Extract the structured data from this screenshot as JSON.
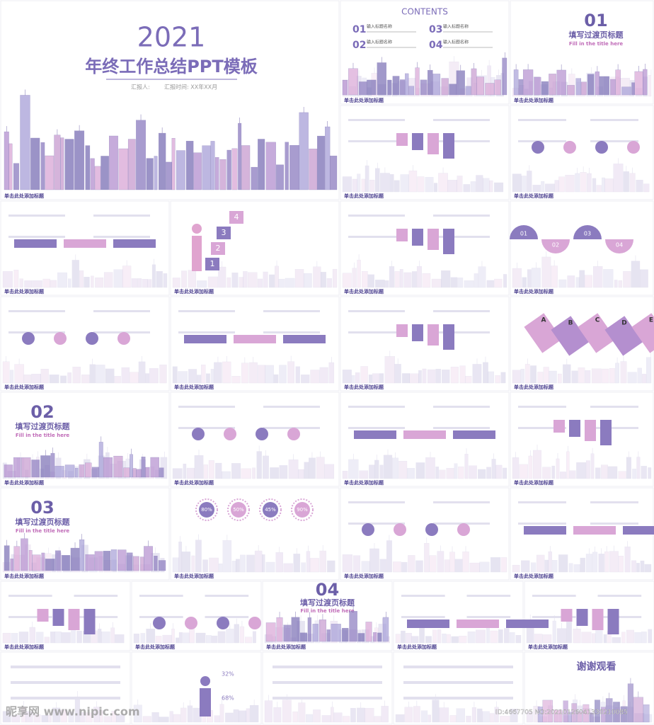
{
  "cover": {
    "year": "2021",
    "title": "年终工作总结PPT模板",
    "reporter": "汇报人:",
    "time": "汇报时间: XX年XX月"
  },
  "contents": {
    "title": "CONTENTS",
    "items": [
      {
        "num": "01",
        "label": "输入标题名称"
      },
      {
        "num": "03",
        "label": "输入标题名称"
      },
      {
        "num": "02",
        "label": "输入标题名称"
      },
      {
        "num": "04",
        "label": "输入标题名称"
      }
    ]
  },
  "transitions": [
    {
      "num": "01",
      "title": "填写过渡页标题",
      "subtitle": "Fill in the title here"
    },
    {
      "num": "02",
      "title": "填写过渡页标题",
      "subtitle": "Fill in the title here"
    },
    {
      "num": "03",
      "title": "填写过渡页标题",
      "subtitle": "Fill in the title here"
    },
    {
      "num": "04",
      "title": "填写过渡页标题",
      "subtitle": "Fill in the title here"
    }
  ],
  "captions": [
    "单击此处添加标题",
    "单击此处添加标题",
    "单击此处添加标题",
    "单击此处添加标题",
    "单击此处添加标题",
    "单击此处添加标题",
    "单击此处添加标题",
    "单击此处添加标题",
    "单击此处添加标题",
    "单击此处添加标题",
    "单击此处添加标题",
    "单击此处添加标题",
    "单击此处添加标题",
    "单击此处添加标题",
    "单击此处添加标题",
    "单击此处添加标题",
    "单击此处添加标题",
    "单击此处添加标题",
    "单击此处添加标题",
    "单击此处添加标题",
    "单击此处添加标题",
    "单击此处添加标题",
    "单击此处添加标题",
    "单击此处添加标题",
    "单击此处添加标题",
    "单击此处添加标题"
  ],
  "percent_circles": [
    "80%",
    "50%",
    "45%",
    "90%"
  ],
  "side_percents": [
    "32%",
    "68%"
  ],
  "steps": [
    "4",
    "3",
    "2",
    "1"
  ],
  "semicircles": [
    "01",
    "02",
    "03",
    "04"
  ],
  "tabs": [
    "A",
    "B",
    "C",
    "D",
    "E"
  ],
  "closing": "谢谢观看",
  "watermark": {
    "site": "昵享网 www.nipic.com",
    "id": "ID:4667705 NO:20210126041330210085"
  }
}
